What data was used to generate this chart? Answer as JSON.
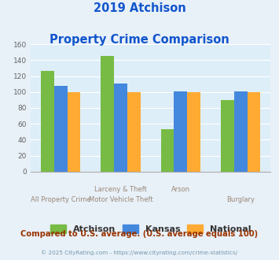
{
  "title_line1": "2019 Atchison",
  "title_line2": "Property Crime Comparison",
  "atchison": [
    126,
    145,
    53,
    90
  ],
  "kansas": [
    108,
    111,
    101,
    101
  ],
  "national": [
    100,
    100,
    100,
    100
  ],
  "color_atchison": "#77bb44",
  "color_kansas": "#4488dd",
  "color_national": "#ffaa33",
  "ylim": [
    0,
    160
  ],
  "yticks": [
    0,
    20,
    40,
    60,
    80,
    100,
    120,
    140,
    160
  ],
  "bg_color": "#e8f0f8",
  "plot_bg": "#ddeef8",
  "title_color": "#1155cc",
  "footer_text": "Compared to U.S. average. (U.S. average equals 100)",
  "footer_color": "#993300",
  "copyright_text": "© 2025 CityRating.com - https://www.cityrating.com/crime-statistics/",
  "copyright_color": "#7799aa",
  "legend_labels": [
    "Atchison",
    "Kansas",
    "National"
  ],
  "line1_labels": [
    "",
    "Larceny & Theft",
    "Arson",
    ""
  ],
  "line2_labels": [
    "All Property Crime",
    "Motor Vehicle Theft",
    "",
    "Burglary"
  ]
}
